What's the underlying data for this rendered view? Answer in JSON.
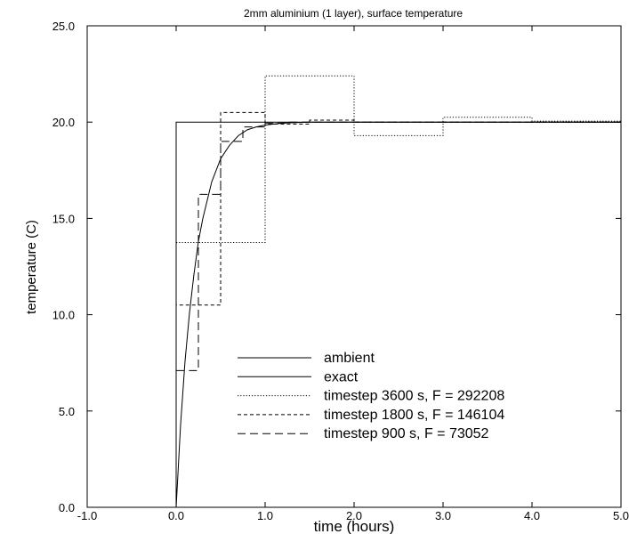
{
  "chart_data": {
    "type": "line",
    "title": "2mm aluminium (1 layer), surface temperature",
    "xlabel": "time (hours)",
    "ylabel": "temperature (C)",
    "xlim": [
      -1.0,
      5.0
    ],
    "ylim": [
      0.0,
      25.0
    ],
    "xticks": [
      "-1.0",
      "0.0",
      "1.0",
      "2.0",
      "3.0",
      "4.0",
      "5.0"
    ],
    "yticks": [
      "0.0",
      "5.0",
      "10.0",
      "15.0",
      "20.0",
      "25.0"
    ],
    "grid": false,
    "legend_position": "bottom-right",
    "series": [
      {
        "name": "ambient",
        "style": "solid",
        "points": [
          [
            -1.0,
            0.0
          ],
          [
            0.0,
            0.0
          ],
          [
            0.0,
            20.0
          ],
          [
            5.0,
            20.0
          ]
        ]
      },
      {
        "name": "exact",
        "style": "solid",
        "points": [
          [
            0.0,
            0.0
          ],
          [
            0.05,
            4.3
          ],
          [
            0.1,
            7.6
          ],
          [
            0.15,
            10.1
          ],
          [
            0.2,
            12.1
          ],
          [
            0.25,
            13.8
          ],
          [
            0.3,
            15.0
          ],
          [
            0.4,
            16.9
          ],
          [
            0.5,
            18.1
          ],
          [
            0.6,
            18.8
          ],
          [
            0.7,
            19.3
          ],
          [
            0.8,
            19.6
          ],
          [
            0.9,
            19.75
          ],
          [
            1.0,
            19.85
          ],
          [
            1.2,
            19.95
          ],
          [
            1.5,
            20.0
          ],
          [
            5.0,
            20.0
          ]
        ]
      },
      {
        "name": "timestep 3600 s, F = 292208",
        "style": "dotted",
        "points": [
          [
            0.0,
            0.0
          ],
          [
            0.0,
            13.75
          ],
          [
            1.0,
            13.75
          ],
          [
            1.0,
            22.4
          ],
          [
            2.0,
            22.4
          ],
          [
            2.0,
            19.3
          ],
          [
            3.0,
            19.3
          ],
          [
            3.0,
            20.25
          ],
          [
            4.0,
            20.25
          ],
          [
            4.0,
            20.05
          ],
          [
            5.0,
            20.05
          ]
        ]
      },
      {
        "name": "timestep 1800 s, F = 146104",
        "style": "dashed",
        "points": [
          [
            0.0,
            0.0
          ],
          [
            0.0,
            10.5
          ],
          [
            0.5,
            10.5
          ],
          [
            0.5,
            20.5
          ],
          [
            1.0,
            20.5
          ],
          [
            1.0,
            19.9
          ],
          [
            1.5,
            19.9
          ],
          [
            1.5,
            20.1
          ],
          [
            2.0,
            20.1
          ],
          [
            2.0,
            20.0
          ],
          [
            5.0,
            20.0
          ]
        ]
      },
      {
        "name": "timestep 900 s, F = 73052",
        "style": "longdash",
        "points": [
          [
            0.0,
            0.0
          ],
          [
            0.0,
            7.1
          ],
          [
            0.25,
            7.1
          ],
          [
            0.25,
            16.25
          ],
          [
            0.5,
            16.25
          ],
          [
            0.5,
            19.0
          ],
          [
            0.75,
            19.0
          ],
          [
            0.75,
            19.75
          ],
          [
            1.0,
            19.75
          ],
          [
            1.0,
            19.95
          ],
          [
            1.25,
            19.95
          ],
          [
            1.25,
            20.0
          ],
          [
            5.0,
            20.0
          ]
        ]
      }
    ]
  }
}
